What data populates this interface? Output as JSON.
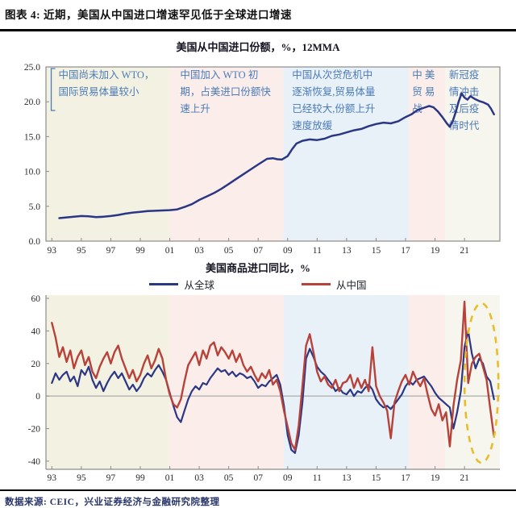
{
  "header": {
    "title": "图表 4: 近期，美国从中国进口增速罕见低于全球进口增速"
  },
  "footer": {
    "source": "数据来源: CEIC，兴业证券经济与金融研究院整理"
  },
  "colors": {
    "navy_line": "#2b3784",
    "red_line": "#b6423a",
    "annotation_blue": "#4a7ab8",
    "band_beige": "#f3f1e2",
    "band_pink": "#fbeeea",
    "band_blue": "#e8f1f8",
    "band_cream": "#f7f6ee",
    "axis_gray": "#8c8c8c",
    "ellipse_gold": "#e8bc2a"
  },
  "chart_data": [
    {
      "type": "line",
      "title": "美国从中国进口份额，%，12MMA",
      "xlim": [
        1992.6,
        2023.4
      ],
      "ylim": [
        0,
        25
      ],
      "grid": false,
      "boxed": true,
      "yticks": [
        {
          "label": "25.0",
          "value": 25
        },
        {
          "label": "20.0",
          "value": 20
        },
        {
          "label": "15.0",
          "value": 15
        },
        {
          "label": "10.0",
          "value": 10
        },
        {
          "label": "5.0",
          "value": 5
        },
        {
          "label": "0.0",
          "value": 0
        }
      ],
      "xticks": [
        {
          "label": "93",
          "year": 1993
        },
        {
          "label": "95",
          "year": 1995
        },
        {
          "label": "97",
          "year": 1997
        },
        {
          "label": "99",
          "year": 1999
        },
        {
          "label": "01",
          "year": 2001
        },
        {
          "label": "03",
          "year": 2003
        },
        {
          "label": "05",
          "year": 2005
        },
        {
          "label": "07",
          "year": 2007
        },
        {
          "label": "09",
          "year": 2009
        },
        {
          "label": "11",
          "year": 2011
        },
        {
          "label": "13",
          "year": 2013
        },
        {
          "label": "15",
          "year": 2015
        },
        {
          "label": "17",
          "year": 2017
        },
        {
          "label": "19",
          "year": 2019
        },
        {
          "label": "21",
          "year": 2021
        }
      ],
      "bands": [
        {
          "from": 1992.6,
          "to": 2001.0,
          "color_key": "band_beige"
        },
        {
          "from": 2001.0,
          "to": 2008.7,
          "color_key": "band_pink"
        },
        {
          "from": 2008.7,
          "to": 2017.2,
          "color_key": "band_blue"
        },
        {
          "from": 2017.2,
          "to": 2019.7,
          "color_key": "band_pink"
        },
        {
          "from": 2019.7,
          "to": 2023.4,
          "color_key": "band_cream"
        }
      ],
      "annotations": [
        {
          "x_year": 1993.45,
          "bracket": true,
          "lines": [
            "中国尚未加入 WTO，",
            "国际贸易体量较小"
          ]
        },
        {
          "x_year": 2001.7,
          "bracket": false,
          "lines": [
            "中国加入  WTO  初",
            "期，占美进口份额快",
            "速上升"
          ]
        },
        {
          "x_year": 2009.3,
          "bracket": false,
          "lines": [
            "中国从次贷危机中",
            "逐渐恢复,贸易体量",
            "已经较大,份额上升",
            "速度放缓"
          ]
        },
        {
          "x_year": 2017.45,
          "bracket": false,
          "lines": [
            "中  美",
            "贸  易",
            "战"
          ]
        },
        {
          "x_year": 2019.95,
          "bracket": false,
          "lines": [
            "新冠疫",
            "情冲击",
            "及后疫",
            "情时代"
          ]
        }
      ],
      "series": [
        {
          "name": "美国从中国进口份额",
          "color_key": "navy_line",
          "width": 2.5,
          "points": [
            [
              1993.5,
              3.3
            ],
            [
              1994,
              3.4
            ],
            [
              1994.5,
              3.5
            ],
            [
              1995,
              3.6
            ],
            [
              1995.5,
              3.55
            ],
            [
              1996,
              3.45
            ],
            [
              1996.5,
              3.5
            ],
            [
              1997,
              3.6
            ],
            [
              1997.5,
              3.75
            ],
            [
              1998,
              3.95
            ],
            [
              1998.5,
              4.1
            ],
            [
              1999,
              4.2
            ],
            [
              1999.5,
              4.3
            ],
            [
              2000,
              4.35
            ],
            [
              2000.5,
              4.4
            ],
            [
              2001,
              4.45
            ],
            [
              2001.5,
              4.55
            ],
            [
              2002,
              4.9
            ],
            [
              2002.5,
              5.3
            ],
            [
              2003,
              5.9
            ],
            [
              2003.5,
              6.4
            ],
            [
              2004,
              6.9
            ],
            [
              2004.5,
              7.5
            ],
            [
              2005,
              8.2
            ],
            [
              2005.5,
              8.9
            ],
            [
              2006,
              9.6
            ],
            [
              2006.5,
              10.3
            ],
            [
              2007,
              11.0
            ],
            [
              2007.3,
              11.4
            ],
            [
              2007.6,
              11.8
            ],
            [
              2008,
              11.9
            ],
            [
              2008.3,
              11.75
            ],
            [
              2008.6,
              11.7
            ],
            [
              2009,
              12.2
            ],
            [
              2009.3,
              13.2
            ],
            [
              2009.6,
              14.0
            ],
            [
              2010,
              14.4
            ],
            [
              2010.5,
              14.6
            ],
            [
              2011,
              14.5
            ],
            [
              2011.5,
              14.7
            ],
            [
              2012,
              15.1
            ],
            [
              2012.5,
              15.3
            ],
            [
              2013,
              15.6
            ],
            [
              2013.5,
              15.9
            ],
            [
              2014,
              16.1
            ],
            [
              2014.5,
              16.5
            ],
            [
              2015,
              16.8
            ],
            [
              2015.5,
              17.0
            ],
            [
              2016,
              16.9
            ],
            [
              2016.5,
              17.2
            ],
            [
              2017,
              17.8
            ],
            [
              2017.4,
              18.2
            ],
            [
              2017.8,
              18.8
            ],
            [
              2018.2,
              19.1
            ],
            [
              2018.6,
              19.4
            ],
            [
              2018.9,
              19.2
            ],
            [
              2019.2,
              18.6
            ],
            [
              2019.5,
              17.8
            ],
            [
              2019.8,
              16.9
            ],
            [
              2020.0,
              16.4
            ],
            [
              2020.2,
              17.2
            ],
            [
              2020.4,
              18.5
            ],
            [
              2020.6,
              20.0
            ],
            [
              2020.8,
              21.2
            ],
            [
              2021.0,
              20.6
            ],
            [
              2021.2,
              20.3
            ],
            [
              2021.4,
              20.8
            ],
            [
              2021.7,
              20.4
            ],
            [
              2022,
              20.1
            ],
            [
              2022.3,
              19.9
            ],
            [
              2022.6,
              19.6
            ],
            [
              2022.8,
              19.0
            ],
            [
              2023,
              18.2
            ]
          ]
        }
      ]
    },
    {
      "type": "line",
      "title": "美国商品进口同比，%",
      "legend_position": "top-center",
      "xlim": [
        1992.6,
        2023.4
      ],
      "ylim": [
        -40,
        60
      ],
      "ylim_draw": [
        -45,
        62
      ],
      "grid": false,
      "boxed": false,
      "zero_line": true,
      "yticks": [
        {
          "label": "60",
          "value": 60
        },
        {
          "label": "40",
          "value": 40
        },
        {
          "label": "20",
          "value": 20
        },
        {
          "label": "0",
          "value": 0
        },
        {
          "label": "-20",
          "value": -20
        },
        {
          "label": "-40",
          "value": -40
        }
      ],
      "xticks": [
        {
          "label": "93",
          "year": 1993
        },
        {
          "label": "95",
          "year": 1995
        },
        {
          "label": "97",
          "year": 1997
        },
        {
          "label": "99",
          "year": 1999
        },
        {
          "label": "01",
          "year": 2001
        },
        {
          "label": "03",
          "year": 2003
        },
        {
          "label": "05",
          "year": 2005
        },
        {
          "label": "07",
          "year": 2007
        },
        {
          "label": "09",
          "year": 2009
        },
        {
          "label": "11",
          "year": 2011
        },
        {
          "label": "13",
          "year": 2013
        },
        {
          "label": "15",
          "year": 2015
        },
        {
          "label": "17",
          "year": 2017
        },
        {
          "label": "19",
          "year": 2019
        },
        {
          "label": "21",
          "year": 2021
        }
      ],
      "bands": [
        {
          "from": 1992.6,
          "to": 2001.0,
          "color_key": "band_beige"
        },
        {
          "from": 2001.0,
          "to": 2008.7,
          "color_key": "band_pink"
        },
        {
          "from": 2008.7,
          "to": 2017.2,
          "color_key": "band_blue"
        },
        {
          "from": 2017.2,
          "to": 2019.7,
          "color_key": "band_pink"
        },
        {
          "from": 2019.7,
          "to": 2023.4,
          "color_key": "band_cream"
        }
      ],
      "highlight_ellipse": {
        "cx_year": 2022.15,
        "cy_value": 8,
        "rx_years": 1.15,
        "ry_values": 49,
        "color_key": "ellipse_gold",
        "dashed": true
      },
      "series": [
        {
          "name": "从全球",
          "color_key": "navy_line",
          "width": 2.2,
          "start": 1993,
          "step": 0.25,
          "values": [
            8,
            14,
            10,
            13,
            15,
            9,
            12,
            6,
            16,
            13,
            18,
            10,
            5,
            9,
            3,
            8,
            12,
            15,
            11,
            14,
            9,
            4,
            7,
            3,
            6,
            11,
            14,
            12,
            16,
            19,
            15,
            10,
            2,
            -6,
            -13,
            -16,
            -9,
            -2,
            3,
            6,
            4,
            8,
            7,
            11,
            14,
            17,
            15,
            16,
            13,
            15,
            12,
            14,
            13,
            11,
            12,
            9,
            5,
            7,
            6,
            9,
            11,
            13,
            7,
            -6,
            -24,
            -33,
            -35,
            -24,
            -4,
            23,
            29,
            24,
            18,
            15,
            13,
            10,
            7,
            3,
            5,
            2,
            1,
            4,
            0,
            3,
            2,
            5,
            7,
            4,
            -2,
            -5,
            -7,
            -6,
            -8,
            -5,
            -2,
            1,
            6,
            9,
            7,
            10,
            11,
            12,
            9,
            6,
            2,
            -1,
            -3,
            -5,
            -7,
            -20,
            -10,
            3,
            30,
            40,
            26,
            17,
            23,
            20,
            12,
            9,
            -2
          ]
        },
        {
          "name": "从中国",
          "color_key": "red_line",
          "width": 2.4,
          "start": 1993,
          "step": 0.25,
          "values": [
            45,
            36,
            24,
            30,
            21,
            28,
            17,
            24,
            28,
            19,
            24,
            15,
            11,
            18,
            23,
            27,
            20,
            27,
            31,
            23,
            17,
            11,
            16,
            9,
            13,
            20,
            25,
            17,
            22,
            29,
            23,
            10,
            1,
            -5,
            -7,
            -2,
            9,
            19,
            23,
            27,
            19,
            28,
            23,
            31,
            33,
            25,
            30,
            27,
            23,
            28,
            21,
            26,
            19,
            15,
            18,
            13,
            9,
            14,
            11,
            16,
            7,
            10,
            3,
            -9,
            -19,
            -29,
            -33,
            -18,
            6,
            31,
            38,
            27,
            15,
            9,
            12,
            7,
            5,
            10,
            3,
            8,
            9,
            13,
            5,
            11,
            5,
            10,
            3,
            30,
            6,
            0,
            -4,
            -9,
            -26,
            -4,
            3,
            9,
            13,
            7,
            15,
            10,
            6,
            11,
            1,
            -8,
            -12,
            -5,
            -15,
            -10,
            -31,
            -6,
            10,
            22,
            58,
            8,
            20,
            24,
            26,
            18,
            10,
            -8,
            -25
          ]
        }
      ]
    }
  ]
}
